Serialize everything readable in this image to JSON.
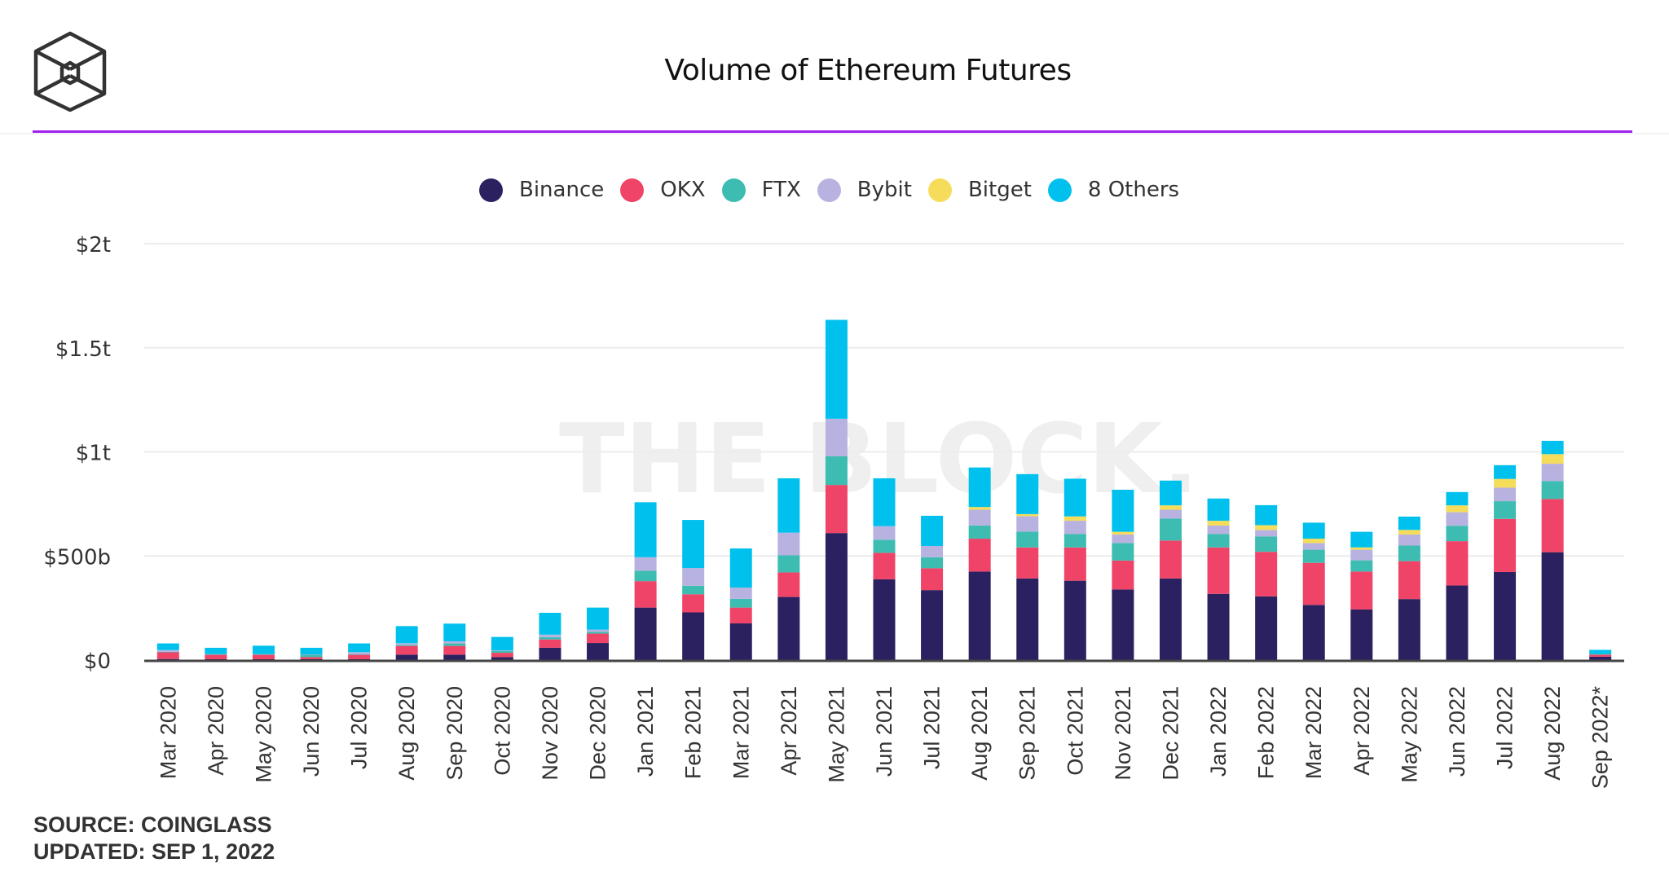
{
  "header": {
    "logo": "the-block-cube-logo",
    "title": "Volume of Ethereum Futures",
    "accent_color": "#a020f0"
  },
  "watermark": "THE BLOCK.",
  "footer": {
    "source": "SOURCE: COINGLASS",
    "updated": "UPDATED: SEP 1, 2022"
  },
  "chart_data": {
    "type": "bar",
    "stacked": true,
    "title": "Volume of Ethereum Futures",
    "xlabel": "",
    "ylabel": "",
    "ylim": [
      0,
      2000
    ],
    "units": "billions USD",
    "yticks": [
      {
        "value": 0,
        "label": "$0"
      },
      {
        "value": 500,
        "label": "$500b"
      },
      {
        "value": 1000,
        "label": "$1t"
      },
      {
        "value": 1500,
        "label": "$1.5t"
      },
      {
        "value": 2000,
        "label": "$2t"
      }
    ],
    "grid": true,
    "legend_position": "top-center",
    "categories": [
      "Mar 2020",
      "Apr 2020",
      "May 2020",
      "Jun 2020",
      "Jul 2020",
      "Aug 2020",
      "Sep 2020",
      "Oct 2020",
      "Nov 2020",
      "Dec 2020",
      "Jan 2021",
      "Feb 2021",
      "Mar 2021",
      "Apr 2021",
      "May 2021",
      "Jun 2021",
      "Jul 2021",
      "Aug 2021",
      "Sep 2021",
      "Oct 2021",
      "Nov 2021",
      "Dec 2021",
      "Jan 2022",
      "Feb 2022",
      "Mar 2022",
      "Apr 2022",
      "May 2022",
      "Jun 2022",
      "Jul 2022",
      "Aug 2022",
      "Sep 2022*"
    ],
    "series": [
      {
        "name": "Binance",
        "color": "#2b2160",
        "values": [
          5,
          4,
          4,
          4,
          4,
          26,
          26,
          14,
          59,
          82,
          252,
          229,
          176,
          303,
          610,
          388,
          336,
          425,
          392,
          381,
          339,
          392,
          318,
          306,
          265,
          243,
          293,
          358,
          423,
          518,
          16
        ]
      },
      {
        "name": "OKX",
        "color": "#ef4468",
        "values": [
          33,
          22,
          22,
          10,
          22,
          42,
          42,
          21,
          40,
          45,
          127,
          87,
          76,
          118,
          231,
          127,
          105,
          158,
          149,
          160,
          139,
          182,
          223,
          214,
          202,
          182,
          182,
          213,
          255,
          256,
          10
        ]
      },
      {
        "name": "FTX",
        "color": "#3dbdb1",
        "values": [
          1,
          1,
          1,
          12,
          1,
          5,
          12,
          8,
          11,
          8,
          50,
          41,
          42,
          82,
          138,
          63,
          53,
          63,
          76,
          65,
          84,
          105,
          65,
          74,
          63,
          54,
          75,
          74,
          85,
          86,
          3
        ]
      },
      {
        "name": "Bybit",
        "color": "#b8b2e0",
        "values": [
          9,
          1,
          1,
          1,
          11,
          8,
          10,
          3,
          12,
          11,
          65,
          85,
          54,
          109,
          180,
          65,
          54,
          76,
          74,
          63,
          41,
          43,
          40,
          31,
          32,
          51,
          53,
          65,
          65,
          83,
          0
        ]
      },
      {
        "name": "Bitget",
        "color": "#f5dc5a",
        "values": [
          0,
          0,
          0,
          0,
          0,
          0,
          0,
          0,
          0,
          0,
          0,
          0,
          0,
          0,
          0,
          0,
          0,
          13,
          10,
          21,
          13,
          21,
          23,
          23,
          21,
          11,
          22,
          33,
          42,
          46,
          0
        ]
      },
      {
        "name": "8 Others",
        "color": "#00c1ee",
        "values": [
          32,
          31,
          41,
          32,
          42,
          82,
          85,
          65,
          105,
          106,
          264,
          231,
          188,
          261,
          475,
          230,
          145,
          190,
          192,
          181,
          202,
          119,
          107,
          96,
          77,
          75,
          64,
          64,
          66,
          64,
          20
        ]
      }
    ]
  }
}
